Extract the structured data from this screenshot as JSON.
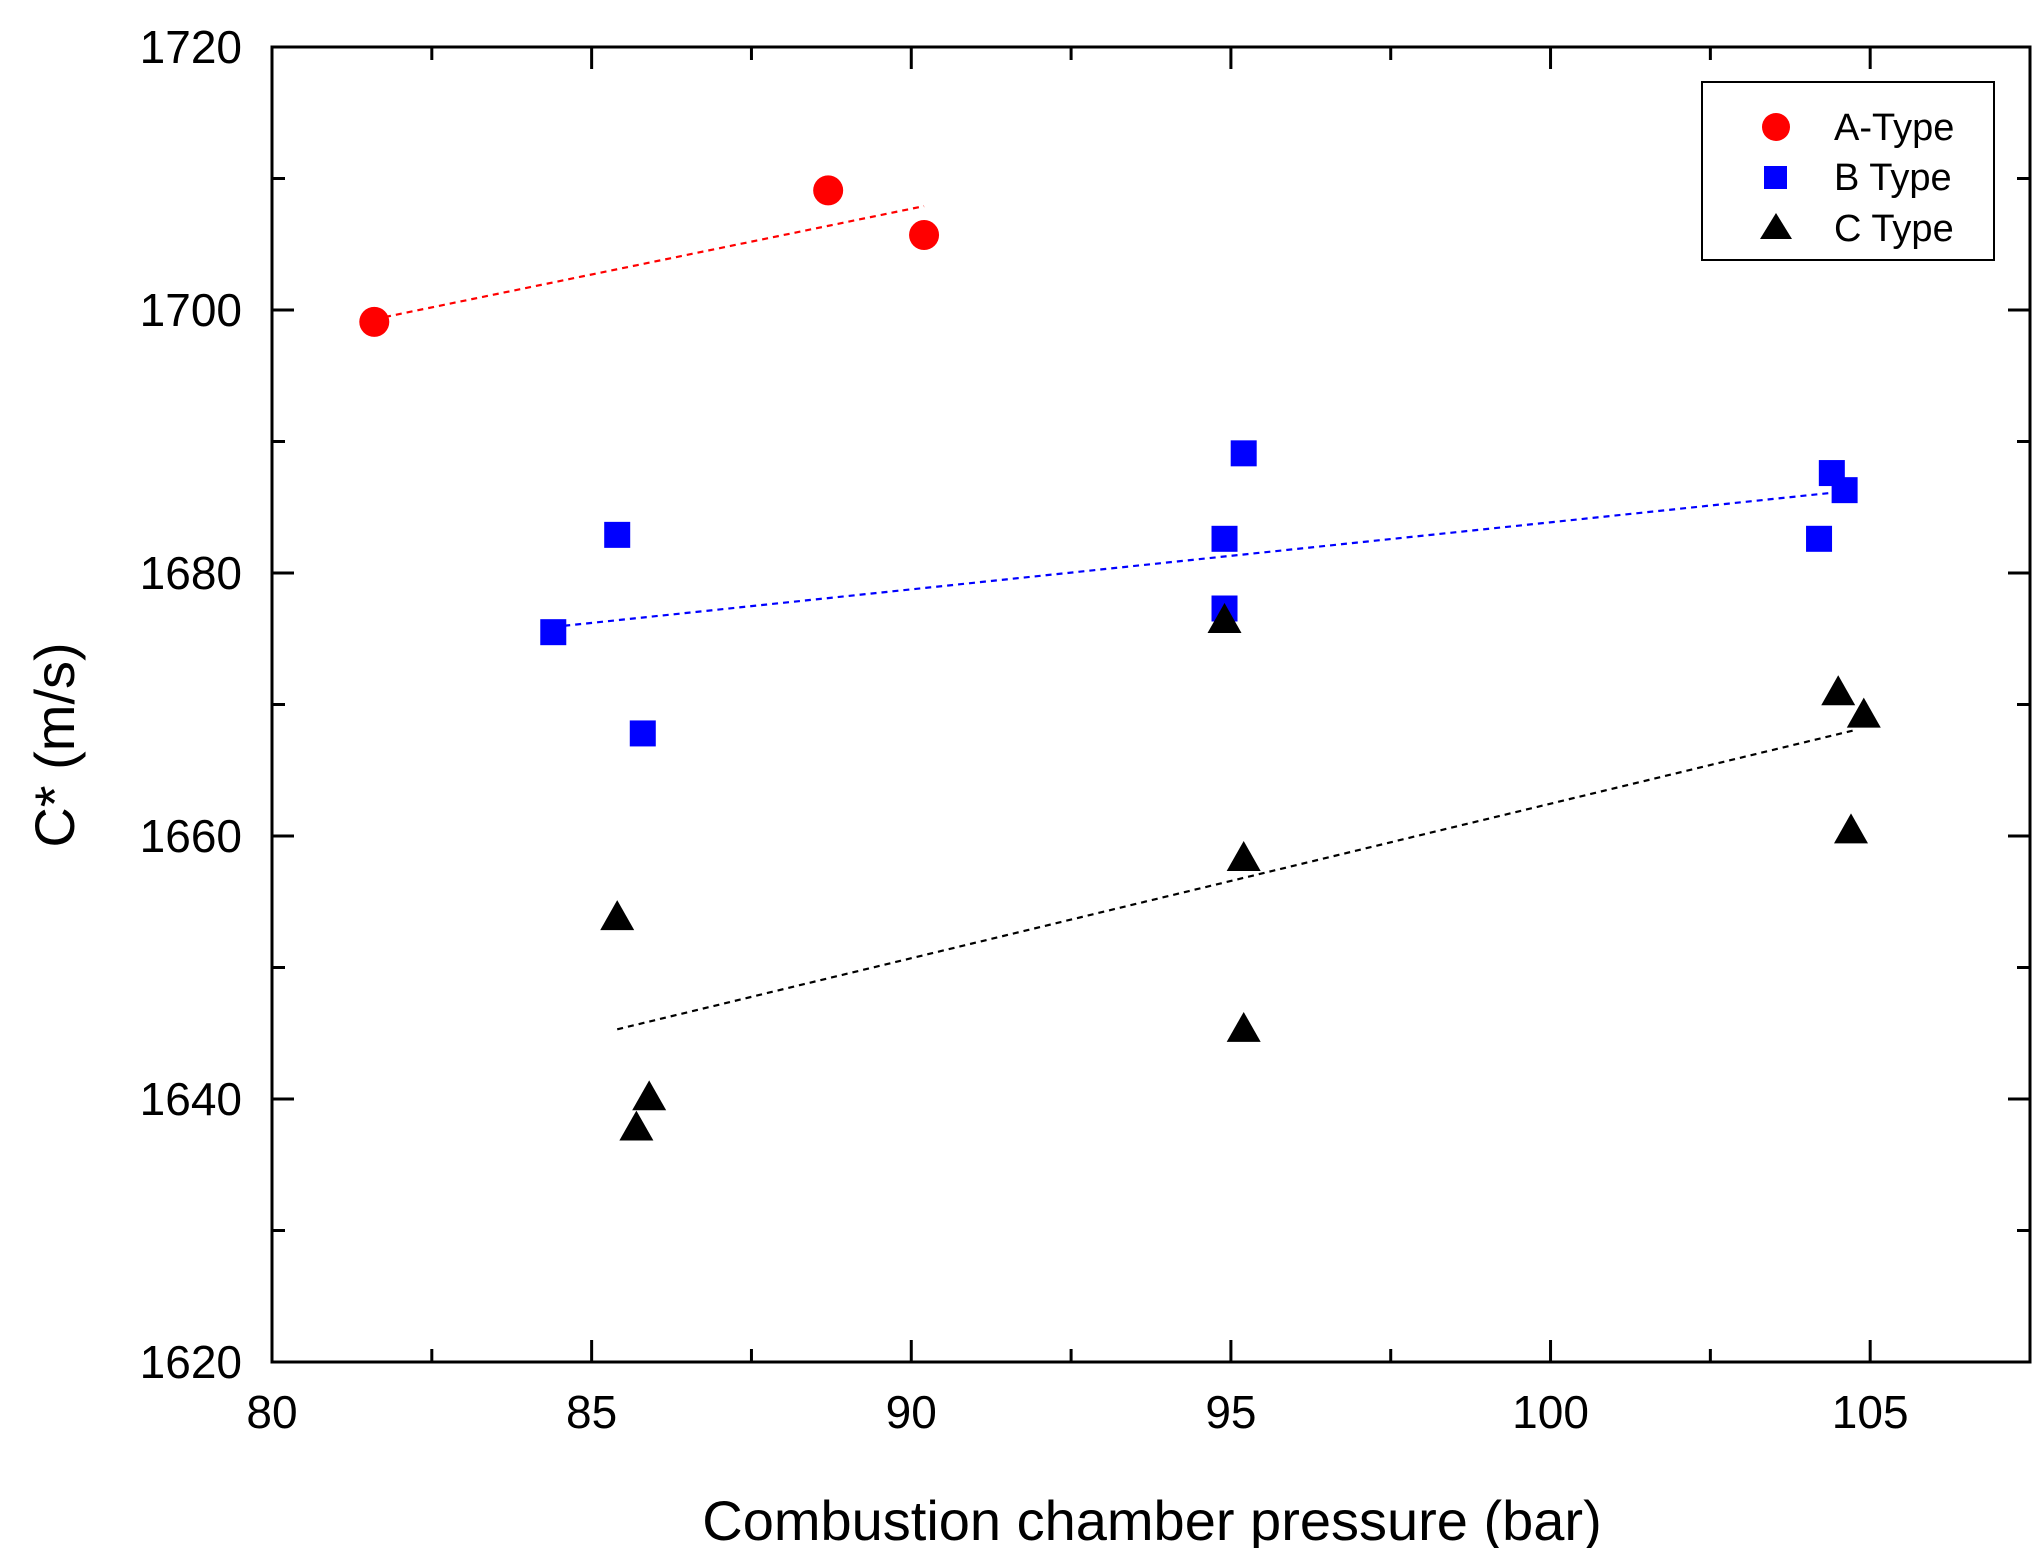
{
  "chart_data": {
    "type": "scatter",
    "xlabel": "Combustion chamber pressure (bar)",
    "ylabel": "C* (m/s)",
    "xlim": [
      80,
      107.5
    ],
    "ylim": [
      1620,
      1720
    ],
    "xticks": [
      80,
      85,
      90,
      95,
      100,
      105
    ],
    "yticks": [
      1620,
      1640,
      1660,
      1680,
      1700,
      1720
    ],
    "grid": false,
    "legend_position": "top-right",
    "series": [
      {
        "name": "A-Type",
        "marker": "circle",
        "color": "#ff0000",
        "points": [
          [
            81.6,
            1699.1
          ],
          [
            88.7,
            1709.1
          ],
          [
            90.2,
            1705.7
          ]
        ],
        "trend": [
          [
            81.6,
            1699.3
          ],
          [
            90.2,
            1707.9
          ]
        ]
      },
      {
        "name": "B Type",
        "marker": "square",
        "color": "#0000ff",
        "points": [
          [
            84.4,
            1675.5
          ],
          [
            85.4,
            1682.9
          ],
          [
            85.8,
            1667.8
          ],
          [
            94.9,
            1682.6
          ],
          [
            94.9,
            1677.3
          ],
          [
            95.2,
            1689.1
          ],
          [
            104.2,
            1682.6
          ],
          [
            104.4,
            1687.6
          ],
          [
            104.6,
            1686.3
          ]
        ],
        "trend": [
          [
            84.4,
            1675.9
          ],
          [
            104.4,
            1686.1
          ]
        ]
      },
      {
        "name": "C Type",
        "marker": "triangle",
        "color": "#000000",
        "points": [
          [
            85.4,
            1653.8
          ],
          [
            85.7,
            1637.8
          ],
          [
            85.9,
            1640.1
          ],
          [
            94.9,
            1676.4
          ],
          [
            95.2,
            1658.3
          ],
          [
            95.2,
            1645.3
          ],
          [
            104.5,
            1670.9
          ],
          [
            104.7,
            1660.4
          ],
          [
            104.9,
            1669.2
          ]
        ],
        "trend": [
          [
            85.4,
            1645.3
          ],
          [
            104.8,
            1668.1
          ]
        ]
      }
    ]
  }
}
